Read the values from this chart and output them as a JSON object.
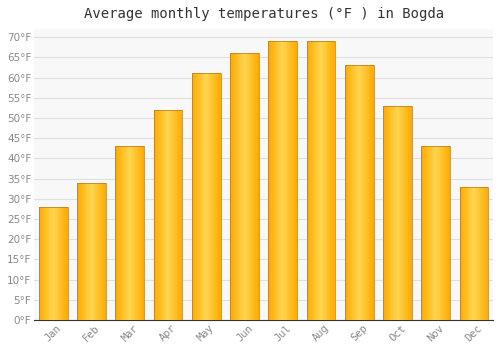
{
  "title": "Average monthly temperatures (°F ) in Bogda",
  "months": [
    "Jan",
    "Feb",
    "Mar",
    "Apr",
    "May",
    "Jun",
    "Jul",
    "Aug",
    "Sep",
    "Oct",
    "Nov",
    "Dec"
  ],
  "values": [
    28,
    34,
    43,
    52,
    61,
    66,
    69,
    69,
    63,
    53,
    43,
    33
  ],
  "bar_color_main": "#FFAA00",
  "bar_color_light": "#FFD050",
  "bar_edge_color": "#B07820",
  "background_color": "#FFFFFF",
  "plot_bg_color": "#F8F8F8",
  "grid_color": "#E0E0E0",
  "ylim": [
    0,
    72
  ],
  "yticks": [
    0,
    5,
    10,
    15,
    20,
    25,
    30,
    35,
    40,
    45,
    50,
    55,
    60,
    65,
    70
  ],
  "title_fontsize": 10,
  "tick_fontsize": 7.5,
  "tick_color": "#888888",
  "axis_color": "#333333",
  "bar_width": 0.75
}
